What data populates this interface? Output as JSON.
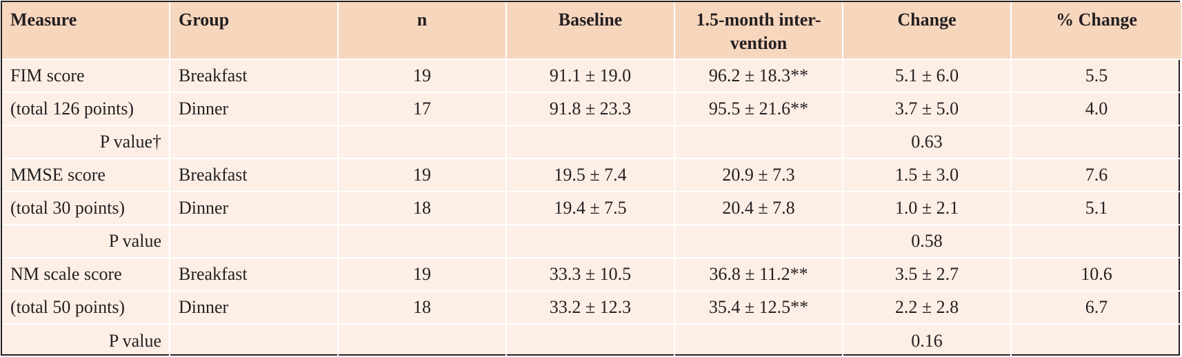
{
  "table": {
    "headers": [
      "Measure",
      "Group",
      "n",
      "Baseline",
      "1.5-month inter-",
      "vention",
      "Change",
      "% Change"
    ],
    "rows": [
      {
        "measure": "FIM score",
        "group": "Breakfast",
        "n": "19",
        "baseline": "91.1 ± 19.0",
        "intervention": "96.2 ± 18.3**",
        "change": "5.1 ± 6.0",
        "pct": "5.5"
      },
      {
        "measure": "(total 126 points)",
        "group": "Dinner",
        "n": "17",
        "baseline": "91.8 ± 23.3",
        "intervention": "95.5 ± 21.6**",
        "change": "3.7 ± 5.0",
        "pct": "4.0"
      },
      {
        "plabel": "P value†",
        "change": "0.63"
      },
      {
        "measure": "MMSE score",
        "group": "Breakfast",
        "n": "19",
        "baseline": "19.5 ± 7.4",
        "intervention": "20.9 ± 7.3",
        "change": "1.5 ± 3.0",
        "pct": "7.6"
      },
      {
        "measure": "(total 30 points)",
        "group": "Dinner",
        "n": "18",
        "baseline": "19.4 ± 7.5",
        "intervention": "20.4 ± 7.8",
        "change": "1.0 ± 2.1",
        "pct": "5.1"
      },
      {
        "plabel": "P value",
        "change": "0.58"
      },
      {
        "measure": "NM scale score",
        "group": "Breakfast",
        "n": "19",
        "baseline": "33.3 ± 10.5",
        "intervention": "36.8 ± 11.2**",
        "change": "3.5 ± 2.7",
        "pct": "10.6"
      },
      {
        "measure": "(total 50 points)",
        "group": "Dinner",
        "n": "18",
        "baseline": "33.2 ± 12.3",
        "intervention": "35.4 ± 12.5**",
        "change": "2.2 ± 2.8",
        "pct": "6.7"
      },
      {
        "plabel": "P value",
        "change": "0.16"
      }
    ]
  }
}
